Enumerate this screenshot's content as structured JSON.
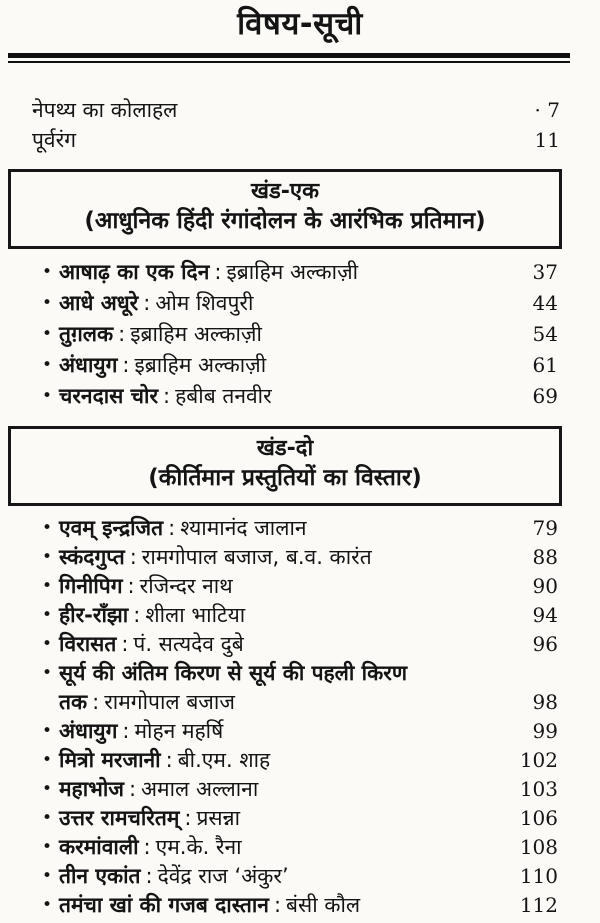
{
  "page_title": "विषय-सूची",
  "separator": ":",
  "icons": {
    "bullet": "•"
  },
  "front_matter": [
    {
      "title": "नेपथ्य का कोलाहल",
      "page": "· 7"
    },
    {
      "title": "पूर्वरंग",
      "page": "11"
    }
  ],
  "sections": [
    {
      "heading": "खंड-एक",
      "subheading": "(आधुनिक हिंदी रंगांदोलन के आरंभिक प्रतिमान)",
      "items": [
        {
          "title": "आषाढ़ का एक दिन",
          "author": "इब्राहिम अल्काज़ी",
          "page": "37"
        },
        {
          "title": "आधे अधूरे",
          "author": "ओम शिवपुरी",
          "page": "44"
        },
        {
          "title": "तुग़लक",
          "author": "इब्राहिम अल्काज़ी",
          "page": "54"
        },
        {
          "title": "अंधायुग",
          "author": "इब्राहिम अल्काज़ी",
          "page": "61"
        },
        {
          "title": "चरनदास चोर",
          "author": "हबीब तनवीर",
          "page": "69"
        }
      ]
    },
    {
      "heading": "खंड-दो",
      "subheading": "(कीर्तिमान प्रस्तुतियों का विस्तार)",
      "items": [
        {
          "title": "एवम् इन्द्रजित",
          "author": "श्यामानंद जालान",
          "page": "79"
        },
        {
          "title": "स्कंदगुप्त",
          "author": "रामगोपाल बजाज, ब.व. कारंत",
          "page": "88"
        },
        {
          "title": "गिनीपिग",
          "author": "रजिन्दर नाथ",
          "page": "90"
        },
        {
          "title": "हीर-राँझा",
          "author": "शीला भाटिया",
          "page": "94"
        },
        {
          "title": "विरासत",
          "author": "पं. सत्यदेव दुबे",
          "page": "96"
        },
        {
          "title": "सूर्य की अंतिम किरण से सूर्य की पहली किरण तक",
          "author": "रामगोपाल बजाज",
          "page": "98"
        },
        {
          "title": "अंधायुग",
          "author": "मोहन महर्षि",
          "page": "99"
        },
        {
          "title": "मित्रो मरजानी",
          "author": "बी.एम. शाह",
          "page": "102"
        },
        {
          "title": "महाभोज",
          "author": "अमाल अल्लाना",
          "page": "103"
        },
        {
          "title": "उत्तर रामचरितम्",
          "author": "प्रसन्ना",
          "page": "106"
        },
        {
          "title": "करमांवाली",
          "author": "एम.के. रैना",
          "page": "108"
        },
        {
          "title": "तीन एकांत",
          "author": "देवेंद्र राज ‘अंकुर’",
          "page": "110"
        },
        {
          "title": "तमंचा खां की गजब दास्तान",
          "author": "बंसी कौल",
          "page": "112"
        }
      ]
    }
  ]
}
